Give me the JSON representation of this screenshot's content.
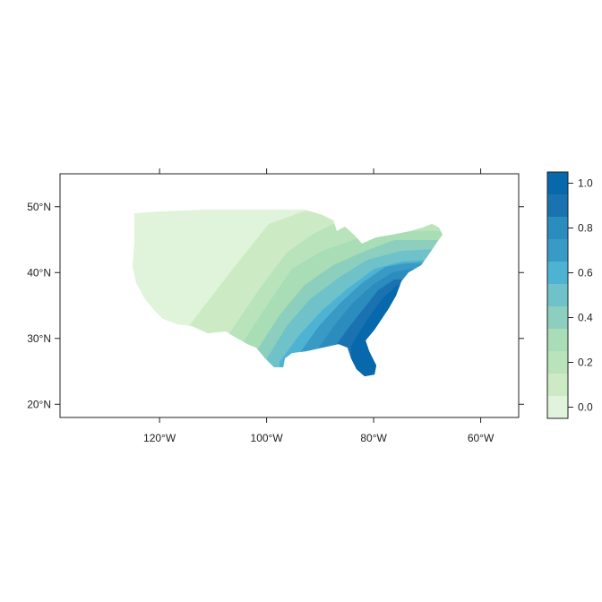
{
  "map": {
    "x_ticks": [
      {
        "lon": -120,
        "label": "120°W"
      },
      {
        "lon": -100,
        "label": "100°W"
      },
      {
        "lon": -80,
        "label": "80°W"
      },
      {
        "lon": -60,
        "label": "60°W"
      }
    ],
    "y_ticks": [
      {
        "lat": 20,
        "label": "20°N"
      },
      {
        "lat": 30,
        "label": "30°N"
      },
      {
        "lat": 40,
        "label": "40°N"
      },
      {
        "lat": 50,
        "label": "50°N"
      }
    ],
    "lon_range": [
      -138.6,
      -52.9
    ],
    "lat_range": [
      18.0,
      55.0
    ]
  },
  "colorkey": {
    "min": -0.05,
    "max": 1.05,
    "ticks": [
      {
        "value": 0.0,
        "label": "0.0"
      },
      {
        "value": 0.2,
        "label": "0.2"
      },
      {
        "value": 0.4,
        "label": "0.4"
      },
      {
        "value": 0.6,
        "label": "0.6"
      },
      {
        "value": 0.8,
        "label": "0.8"
      },
      {
        "value": 1.0,
        "label": "1.0"
      }
    ],
    "colors": [
      "#e0f3db",
      "#ccebc5",
      "#b8e3bb",
      "#a8ddb5",
      "#8ccfbf",
      "#6fc2c9",
      "#4eb3d3",
      "#389ac5",
      "#2b8cbe",
      "#1a73b0",
      "#0868ac"
    ]
  }
}
